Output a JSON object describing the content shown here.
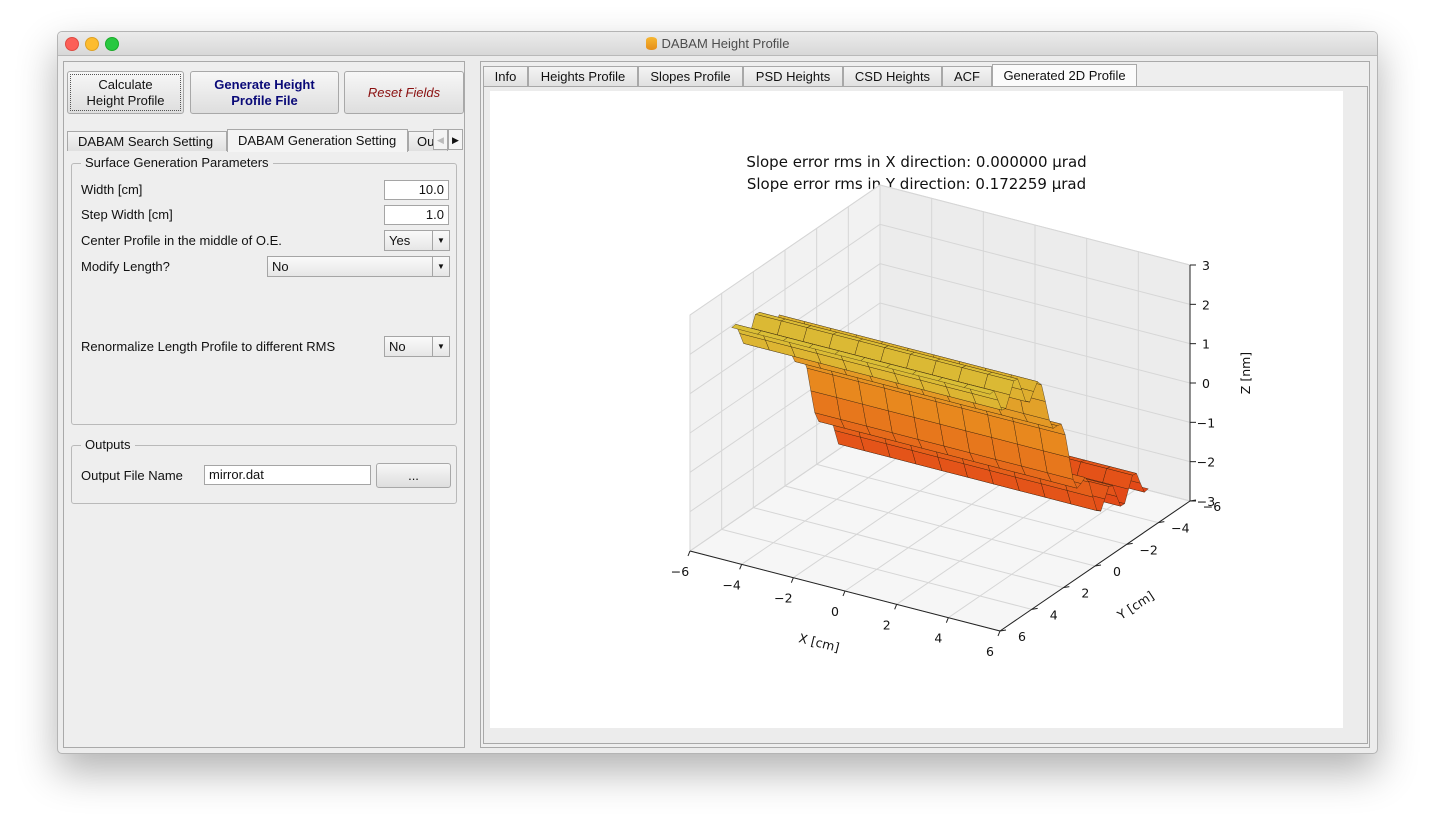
{
  "window": {
    "title": "DABAM Height Profile"
  },
  "toolbar": {
    "calculate_label": "Calculate Height Profile",
    "generate_label": "Generate Height Profile File",
    "reset_label": "Reset Fields"
  },
  "left_tabs": [
    {
      "label": "DABAM Search Setting"
    },
    {
      "label": "DABAM Generation Setting"
    },
    {
      "label": "Ou"
    }
  ],
  "surface_group": {
    "title": "Surface Generation Parameters",
    "width_label": "Width [cm]",
    "width_value": "10.0",
    "step_label": "Step Width [cm]",
    "step_value": "1.0",
    "center_label": "Center Profile in the middle of O.E.",
    "center_value": "Yes",
    "modify_label": "Modify Length?",
    "modify_value": "No",
    "renorm_label": "Renormalize Length Profile to different RMS",
    "renorm_value": "No"
  },
  "outputs_group": {
    "title": "Outputs",
    "file_label": "Output File Name",
    "file_value": "mirror.dat",
    "browse_label": "..."
  },
  "right_tabs": [
    {
      "label": "Info"
    },
    {
      "label": "Heights Profile"
    },
    {
      "label": "Slopes Profile"
    },
    {
      "label": "PSD Heights"
    },
    {
      "label": "CSD Heights"
    },
    {
      "label": "ACF"
    },
    {
      "label": "Generated 2D Profile"
    }
  ],
  "chart_data": {
    "type": "surface",
    "title_line1": "Slope error rms in X direction: 0.000000 μrad",
    "title_line2": "Slope error rms in Y direction: 0.172259 μrad",
    "xlabel": "X [cm]",
    "ylabel": "Y [cm]",
    "zlabel": "Z [nm]",
    "x_ticks": [
      "−6",
      "−4",
      "−2",
      "0",
      "2",
      "4",
      "6"
    ],
    "y_ticks": [
      "6",
      "4",
      "2",
      "0",
      "−2",
      "−4",
      "−6"
    ],
    "z_ticks": [
      "3",
      "2",
      "1",
      "0",
      "−1",
      "−2",
      "−3"
    ],
    "xlim": [
      -6,
      6
    ],
    "ylim": [
      -6,
      6
    ],
    "zlim": [
      -3,
      3
    ],
    "colormap": "autumn",
    "colors": {
      "low": "#e23a16",
      "mid": "#e88a1e",
      "high": "#d8c63a"
    }
  }
}
